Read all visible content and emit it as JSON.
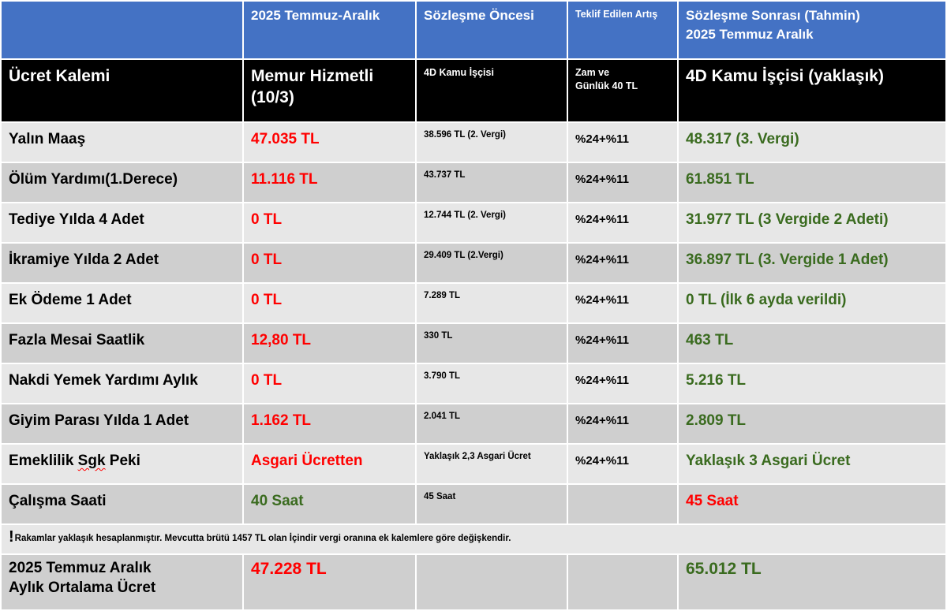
{
  "header_top": {
    "col0": "",
    "col1": "2025 Temmuz-Aralık",
    "col2": "Sözleşme Öncesi",
    "col3": "Teklif Edilen Artış",
    "col4_line1": "Sözleşme Sonrası (Tahmin)",
    "col4_line2": "2025 Temmuz Aralık"
  },
  "header_black": {
    "col0": "Ücret Kalemi",
    "col1_line1": "Memur Hizmetli",
    "col1_line2": "(10/3)",
    "col2": "4D Kamu İşçisi",
    "col3_line1": "Zam ve",
    "col3_line2": "Günlük 40 TL",
    "col4": "4D Kamu İşçisi (yaklaşık)"
  },
  "rows": [
    {
      "label": "Yalın Maaş",
      "memur": "47.035 TL",
      "isci": "38.596 TL (2. Vergi)",
      "artis": "%24+%11",
      "sonra": "48.317 (3. Vergi)"
    },
    {
      "label": "Ölüm Yardımı(1.Derece)",
      "memur": "11.116 TL",
      "isci": "43.737 TL",
      "artis": "%24+%11",
      "sonra": "61.851 TL"
    },
    {
      "label": "Tediye Yılda 4 Adet",
      "memur": "0 TL",
      "isci": "12.744 TL (2. Vergi)",
      "artis": "%24+%11",
      "sonra": "31.977 TL (3 Vergide 2 Adeti)"
    },
    {
      "label": "İkramiye Yılda 2 Adet",
      "memur": "0 TL",
      "isci": "29.409 TL (2.Vergi)",
      "artis": "%24+%11",
      "sonra": "36.897 TL (3. Vergide 1 Adet)"
    },
    {
      "label": "Ek Ödeme 1 Adet",
      "memur": "0 TL",
      "isci": "7.289 TL",
      "artis": "%24+%11",
      "sonra": "0 TL (İlk 6 ayda verildi)"
    },
    {
      "label": "Fazla Mesai Saatlik",
      "memur": "12,80 TL",
      "isci": "330 TL",
      "artis": "%24+%11",
      "sonra": "463 TL"
    },
    {
      "label": "Nakdi Yemek Yardımı Aylık",
      "memur": "0 TL",
      "isci": "3.790 TL",
      "artis": "%24+%11",
      "sonra": "5.216 TL"
    },
    {
      "label": "Giyim Parası Yılda 1 Adet",
      "memur": "1.162 TL",
      "isci": "2.041 TL",
      "artis": "%24+%11",
      "sonra": "2.809 TL"
    },
    {
      "label_prefix": "Emeklilik ",
      "label_squiggle": "Sgk",
      "label_suffix": " Peki",
      "memur": "Asgari Ücretten",
      "isci": "Yaklaşık 2,3 Asgari Ücret",
      "artis": "%24+%11",
      "sonra": "Yaklaşık 3 Asgari Ücret"
    },
    {
      "label": "Çalışma Saati",
      "memur": "40 Saat",
      "isci": "45 Saat",
      "artis": "",
      "sonra": "45 Saat"
    }
  ],
  "note": {
    "mark": "!",
    "text": "Rakamlar yaklaşık hesaplanmıştır. Mevcutta brütü 1457 TL olan İçindir vergi oranına ek kalemlere göre değişkendir."
  },
  "footer": {
    "label_line1": "2025 Temmuz Aralık",
    "label_line2": "Aylık Ortalama Ücret",
    "memur": "47.228 TL",
    "isci": "",
    "artis": "",
    "sonra": "65.012 TL"
  },
  "colors": {
    "header_blue": "#4472c4",
    "header_black": "#000000",
    "row_light": "#e7e7e7",
    "row_dark": "#cfcfcf",
    "value_red": "#ff0000",
    "value_green": "#3a6b1f"
  }
}
